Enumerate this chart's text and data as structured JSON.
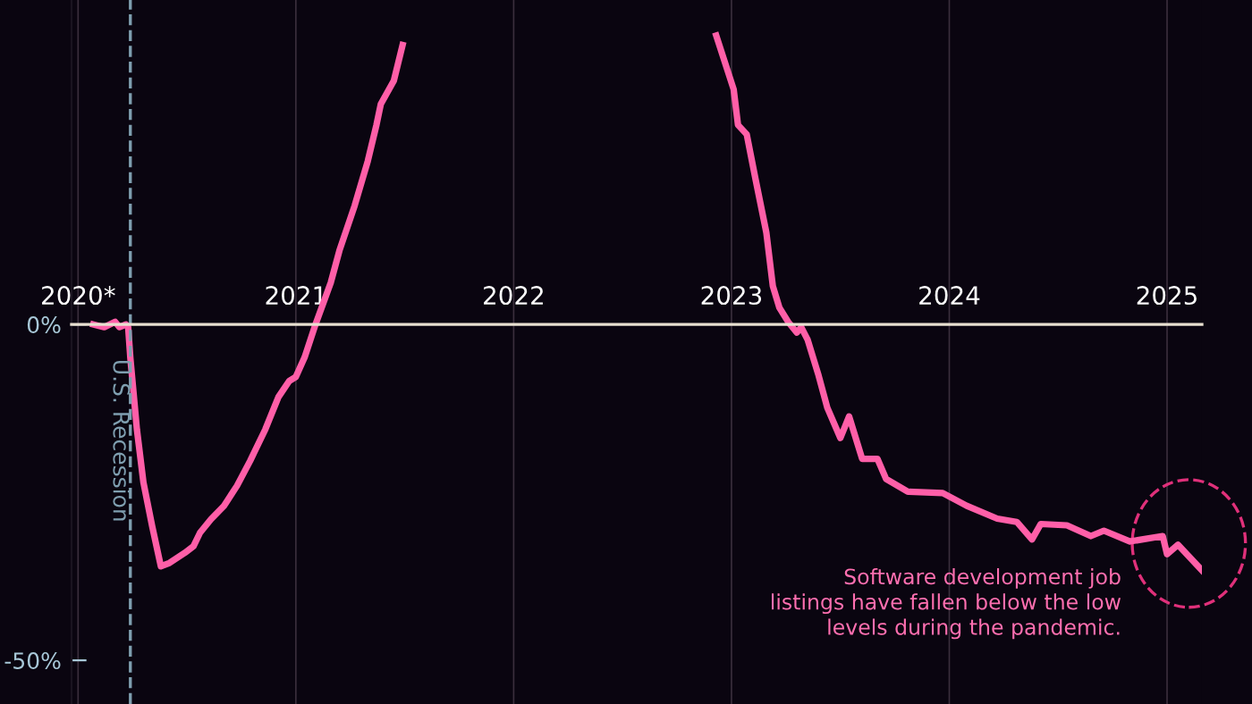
{
  "chart_data": {
    "type": "line",
    "x": [
      2020.07,
      2020.12,
      2020.17,
      2020.19,
      2020.22,
      2020.23,
      2020.24,
      2020.27,
      2020.3,
      2020.34,
      2020.38,
      2020.42,
      2020.49,
      2020.53,
      2020.56,
      2020.61,
      2020.67,
      2020.73,
      2020.79,
      2020.86,
      2020.92,
      2020.97,
      2021.0,
      2021.04,
      2021.09,
      2021.16,
      2021.2,
      2021.27,
      2021.33,
      2021.37,
      2021.39,
      2021.45,
      2021.49,
      2021.53,
      2022.2,
      2022.84,
      2022.93,
      2023.01,
      2023.03,
      2023.07,
      2023.11,
      2023.16,
      2023.19,
      2023.22,
      2023.26,
      2023.3,
      2023.32,
      2023.35,
      2023.4,
      2023.44,
      2023.5,
      2023.54,
      2023.6,
      2023.67,
      2023.71,
      2023.81,
      2023.97,
      2024.08,
      2024.22,
      2024.31,
      2024.38,
      2024.42,
      2024.54,
      2024.65,
      2024.71,
      2024.83,
      2024.98,
      2025.0,
      2025.05,
      2025.16
    ],
    "values": [
      0,
      -0.4,
      0.4,
      -0.4,
      0,
      -0.4,
      -5,
      -15.6,
      -23.5,
      -30,
      -36,
      -35.5,
      -34,
      -33,
      -31,
      -29,
      -27,
      -24,
      -20.3,
      -15.6,
      -10.8,
      -8.4,
      -7.8,
      -4.9,
      0,
      6.2,
      11,
      17.7,
      24.3,
      29.7,
      32.8,
      36.3,
      41.6,
      null,
      null,
      null,
      43,
      35,
      29.7,
      28.3,
      21.7,
      13.7,
      5.7,
      2.5,
      0.4,
      -1.2,
      -0.4,
      -2.3,
      -7.6,
      -12.4,
      -16.9,
      -13.7,
      -20,
      -20,
      -23,
      -24.9,
      -25.1,
      -27,
      -28.9,
      -29.4,
      -32,
      -29.7,
      -29.9,
      -31.5,
      -30.7,
      -32.3,
      -31.5,
      -34.2,
      -32.8,
      -36.6
    ],
    "color": "#ff5fa8",
    "xlim": [
      2019.97,
      2025.16
    ],
    "xticks": [
      {
        "value": 2020,
        "label": "2020*"
      },
      2021,
      2022,
      2023,
      2024,
      2025
    ],
    "ylim": [
      -56.5,
      48.3
    ],
    "yticks": [
      {
        "value": 0,
        "label": "0%"
      },
      {
        "value": -50,
        "label": "-50%"
      }
    ],
    "grid": "x",
    "ref_lines": [
      {
        "axis": "x",
        "value": 2020.24,
        "label": "U.S. Recession",
        "color": "#7f9fb0",
        "line_style": "dashed"
      }
    ],
    "annotations": [
      "Software development job\nlistings have fallen below the low\nlevels during the pandemic."
    ]
  }
}
